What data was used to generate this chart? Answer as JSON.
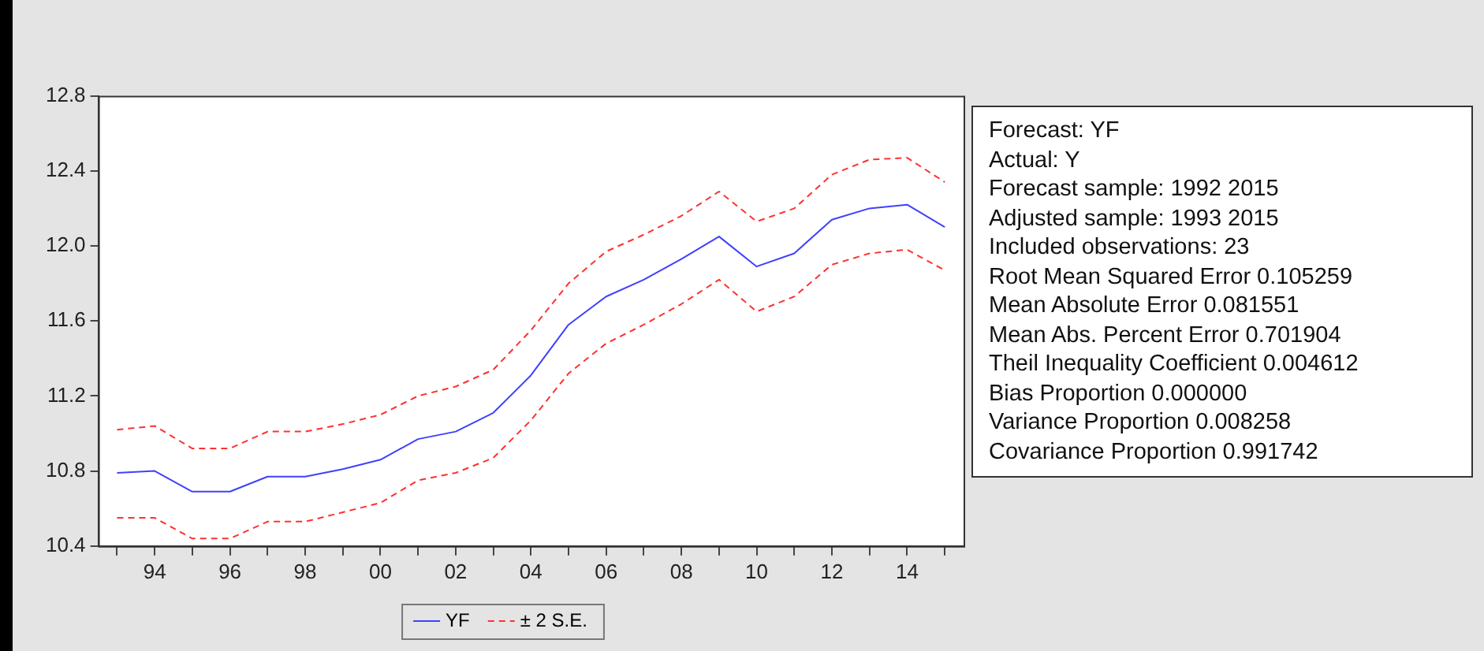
{
  "chart_data": {
    "type": "line",
    "x": [
      1993,
      1994,
      1995,
      1996,
      1997,
      1998,
      1999,
      2000,
      2001,
      2002,
      2003,
      2004,
      2005,
      2006,
      2007,
      2008,
      2009,
      2010,
      2011,
      2012,
      2013,
      2014,
      2015
    ],
    "series": [
      {
        "name": "YF",
        "color": "#4040ff",
        "line_style": "solid",
        "values": [
          10.79,
          10.8,
          10.69,
          10.69,
          10.77,
          10.77,
          10.81,
          10.86,
          10.97,
          11.01,
          11.11,
          11.31,
          11.58,
          11.73,
          11.82,
          11.93,
          12.05,
          11.89,
          11.96,
          12.14,
          12.2,
          12.22,
          12.1
        ]
      },
      {
        "name": "± 2 S.E.",
        "color": "#ff3030",
        "line_style": "dashed",
        "values": [
          11.02,
          11.04,
          10.92,
          10.92,
          11.01,
          11.01,
          11.05,
          11.1,
          11.2,
          11.25,
          11.34,
          11.55,
          11.8,
          11.97,
          12.06,
          12.16,
          12.29,
          12.13,
          12.2,
          12.38,
          12.46,
          12.47,
          12.34
        ]
      },
      {
        "color": "#ff3030",
        "line_style": "dashed",
        "values": [
          10.55,
          10.55,
          10.44,
          10.44,
          10.53,
          10.53,
          10.58,
          10.63,
          10.75,
          10.79,
          10.87,
          11.07,
          11.32,
          11.48,
          11.58,
          11.69,
          11.82,
          11.65,
          11.73,
          11.9,
          11.96,
          11.98,
          11.87
        ]
      }
    ],
    "xlim": [
      1992.5,
      2015.5
    ],
    "xticks": [
      {
        "value": 1993,
        "label": null
      },
      {
        "value": 1994,
        "label": "94"
      },
      {
        "value": 1995,
        "label": null
      },
      {
        "value": 1996,
        "label": "96"
      },
      {
        "value": 1997,
        "label": null
      },
      {
        "value": 1998,
        "label": "98"
      },
      {
        "value": 1999,
        "label": null
      },
      {
        "value": 2000,
        "label": "00"
      },
      {
        "value": 2001,
        "label": null
      },
      {
        "value": 2002,
        "label": "02"
      },
      {
        "value": 2003,
        "label": null
      },
      {
        "value": 2004,
        "label": "04"
      },
      {
        "value": 2005,
        "label": null
      },
      {
        "value": 2006,
        "label": "06"
      },
      {
        "value": 2007,
        "label": null
      },
      {
        "value": 2008,
        "label": "08"
      },
      {
        "value": 2009,
        "label": null
      },
      {
        "value": 2010,
        "label": "10"
      },
      {
        "value": 2011,
        "label": null
      },
      {
        "value": 2012,
        "label": "12"
      },
      {
        "value": 2013,
        "label": null
      },
      {
        "value": 2014,
        "label": "14"
      },
      {
        "value": 2015,
        "label": null
      }
    ],
    "ylim": [
      10.4,
      12.8
    ],
    "yticks": [
      {
        "value": 10.4,
        "label": "10.4"
      },
      {
        "value": 10.8,
        "label": "10.8"
      },
      {
        "value": 11.2,
        "label": "11.2"
      },
      {
        "value": 11.6,
        "label": "11.6"
      },
      {
        "value": 12.0,
        "label": "12.0"
      },
      {
        "value": 12.4,
        "label": "12.4"
      },
      {
        "value": 12.8,
        "label": "12.8"
      }
    ],
    "grid": false,
    "legend": "bottom",
    "marker": "none",
    "annotations": [
      "Forecast: YF",
      "Actual: Y",
      "Forecast sample: 1992 2015",
      "Adjusted sample: 1993 2015",
      "Included observations: 23",
      "Root Mean Squared Error 0.105259",
      "Mean Absolute Error 0.081551",
      "Mean Abs. Percent Error 0.701904",
      "Theil Inequality Coefficient 0.004612",
      "Bias Proportion 0.000000",
      "Variance Proportion 0.008258",
      "Covariance Proportion 0.991742"
    ]
  }
}
